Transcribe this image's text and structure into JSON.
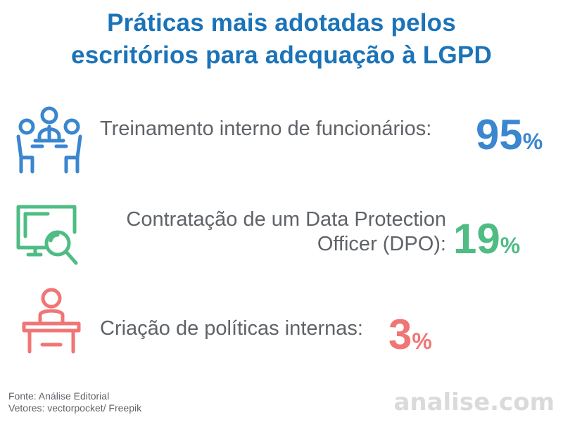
{
  "title": {
    "line1": "Práticas mais adotadas pelos",
    "line2": "escritórios para adequação à LGPD"
  },
  "colors": {
    "title": "#1b73b8",
    "blue": "#3a86cf",
    "green": "#4fbc84",
    "red": "#f07575",
    "text": "#5f6368",
    "brand": "#dadada"
  },
  "items": [
    {
      "icon": "meeting-people-icon",
      "label_line1": "Treinamento interno de funcionários:",
      "value": "95",
      "unit": "%"
    },
    {
      "icon": "monitor-search-icon",
      "label_line1": "Contratação de um Data Protection",
      "label_line2": "Officer (DPO):",
      "value": "19",
      "unit": "%"
    },
    {
      "icon": "speaker-podium-icon",
      "label_line1": "Criação de políticas internas:",
      "value": "3",
      "unit": "%"
    }
  ],
  "footer": {
    "source": "Fonte: Análise Editorial",
    "vectors": "Vetores: vectorpocket/ Freepik"
  },
  "brand": "analise.com"
}
